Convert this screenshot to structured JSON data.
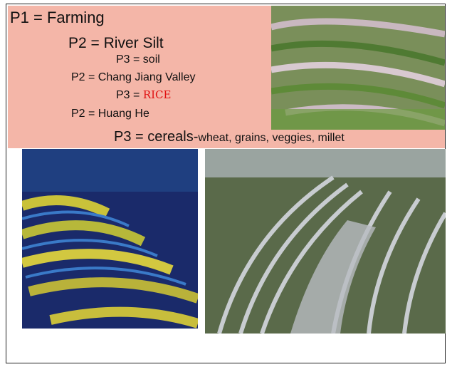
{
  "slide": {
    "lines": [
      {
        "text": "P1 = Farming"
      },
      {
        "text": "P2 = River Silt"
      },
      {
        "text": "P3 = soil"
      },
      {
        "text": "P2 = Chang Jiang Valley"
      },
      {
        "prefix": "P3 = ",
        "highlight": "RICE"
      },
      {
        "text": "P2 = Huang He"
      },
      {
        "main": "P3 = cereals-",
        "detail": "wheat, grains, veggies, millet"
      }
    ]
  }
}
